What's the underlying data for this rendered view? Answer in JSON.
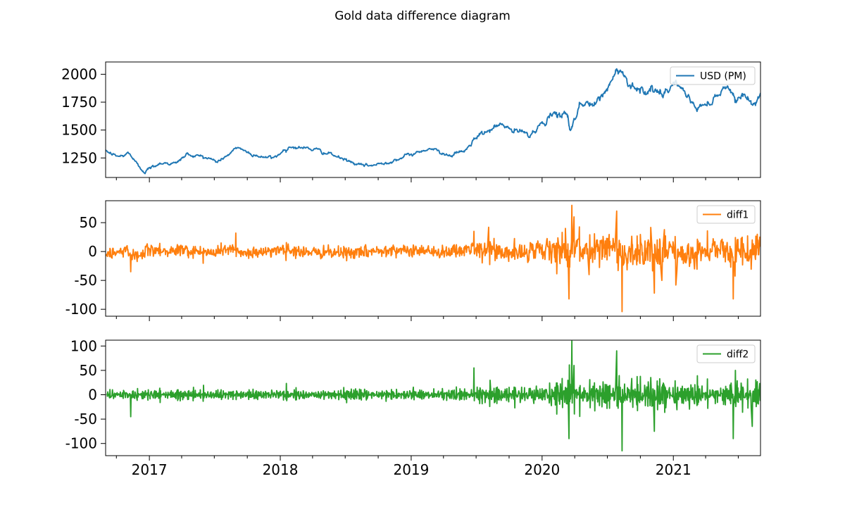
{
  "figure": {
    "title": "Gold data difference diagram"
  },
  "chart_data": [
    {
      "type": "line",
      "x_axis": {
        "kind": "date",
        "range": [
          "2016-09-01",
          "2021-09-01"
        ],
        "tick_labels": [
          "2017",
          "2018",
          "2019",
          "2020",
          "2021"
        ]
      },
      "y_ticks": [
        1250,
        1500,
        1750,
        2000
      ],
      "ylim": [
        1075,
        2110
      ],
      "grid": false,
      "legend_position": "top-right",
      "series": [
        {
          "name": "USD (PM)",
          "color": "#1f77b4",
          "points": [
            [
              "2016-09-01",
              1310
            ],
            [
              "2016-10-01",
              1265
            ],
            [
              "2016-10-20",
              1265
            ],
            [
              "2016-11-05",
              1300
            ],
            [
              "2016-12-01",
              1175
            ],
            [
              "2016-12-20",
              1130
            ],
            [
              "2017-02-01",
              1210
            ],
            [
              "2017-03-15",
              1200
            ],
            [
              "2017-04-15",
              1280
            ],
            [
              "2017-06-01",
              1265
            ],
            [
              "2017-07-10",
              1215
            ],
            [
              "2017-09-08",
              1345
            ],
            [
              "2017-10-10",
              1285
            ],
            [
              "2017-12-12",
              1245
            ],
            [
              "2018-01-25",
              1355
            ],
            [
              "2018-04-01",
              1330
            ],
            [
              "2018-05-15",
              1290
            ],
            [
              "2018-08-16",
              1175
            ],
            [
              "2018-10-01",
              1190
            ],
            [
              "2019-01-01",
              1280
            ],
            [
              "2019-02-20",
              1340
            ],
            [
              "2019-04-20",
              1275
            ],
            [
              "2019-05-31",
              1310
            ],
            [
              "2019-06-25",
              1410
            ],
            [
              "2019-09-04",
              1550
            ],
            [
              "2019-10-15",
              1490
            ],
            [
              "2019-12-01",
              1465
            ],
            [
              "2020-01-08",
              1580
            ],
            [
              "2020-03-09",
              1680
            ],
            [
              "2020-03-19",
              1480
            ],
            [
              "2020-04-14",
              1740
            ],
            [
              "2020-06-01",
              1720
            ],
            [
              "2020-08-06",
              2067
            ],
            [
              "2020-08-20",
              1960
            ],
            [
              "2020-09-23",
              1880
            ],
            [
              "2020-11-09",
              1850
            ],
            [
              "2020-12-01",
              1780
            ],
            [
              "2021-01-06",
              1940
            ],
            [
              "2021-03-08",
              1690
            ],
            [
              "2021-04-15",
              1760
            ],
            [
              "2021-06-01",
              1905
            ],
            [
              "2021-06-25",
              1775
            ],
            [
              "2021-07-15",
              1830
            ],
            [
              "2021-08-10",
              1725
            ],
            [
              "2021-09-01",
              1810
            ]
          ]
        }
      ]
    },
    {
      "type": "line",
      "x_axis": {
        "kind": "date",
        "range": [
          "2016-09-01",
          "2021-09-01"
        ],
        "tick_labels": []
      },
      "y_ticks": [
        -100,
        -50,
        0,
        50
      ],
      "ylim": [
        -112,
        88
      ],
      "grid": false,
      "legend_position": "top-right",
      "series": [
        {
          "name": "diff1",
          "color": "#ff7f0e",
          "generated_from": "daily first difference of USD (PM)",
          "spikes": [
            [
              "2016-11-10",
              -35
            ],
            [
              "2017-08-30",
              32
            ],
            [
              "2019-06-25",
              35
            ],
            [
              "2019-08-05",
              42
            ],
            [
              "2020-03-06",
              40
            ],
            [
              "2020-03-16",
              -82
            ],
            [
              "2020-03-24",
              80
            ],
            [
              "2020-03-30",
              60
            ],
            [
              "2020-05-10",
              -40
            ],
            [
              "2020-07-27",
              70
            ],
            [
              "2020-08-11",
              -104
            ],
            [
              "2020-11-09",
              -72
            ],
            [
              "2020-11-30",
              -50
            ],
            [
              "2021-01-08",
              -58
            ],
            [
              "2021-06-17",
              -82
            ],
            [
              "2021-08-09",
              20
            ]
          ]
        }
      ]
    },
    {
      "type": "line",
      "x_axis": {
        "kind": "date",
        "range": [
          "2016-09-01",
          "2021-09-01"
        ],
        "tick_labels": [
          "2017",
          "2018",
          "2019",
          "2020",
          "2021"
        ]
      },
      "y_ticks": [
        -100,
        -50,
        0,
        50,
        100
      ],
      "ylim": [
        -125,
        112
      ],
      "grid": false,
      "legend_position": "top-right",
      "series": [
        {
          "name": "diff2",
          "color": "#2ca02c",
          "generated_from": "second difference of USD (PM)",
          "spikes": [
            [
              "2016-11-10",
              -45
            ],
            [
              "2019-06-25",
              55
            ],
            [
              "2020-03-16",
              -90
            ],
            [
              "2020-03-24",
              110
            ],
            [
              "2020-03-30",
              60
            ],
            [
              "2020-07-27",
              90
            ],
            [
              "2020-08-11",
              -115
            ],
            [
              "2020-11-09",
              -75
            ],
            [
              "2021-06-17",
              -90
            ],
            [
              "2021-08-09",
              -65
            ]
          ]
        }
      ]
    }
  ]
}
